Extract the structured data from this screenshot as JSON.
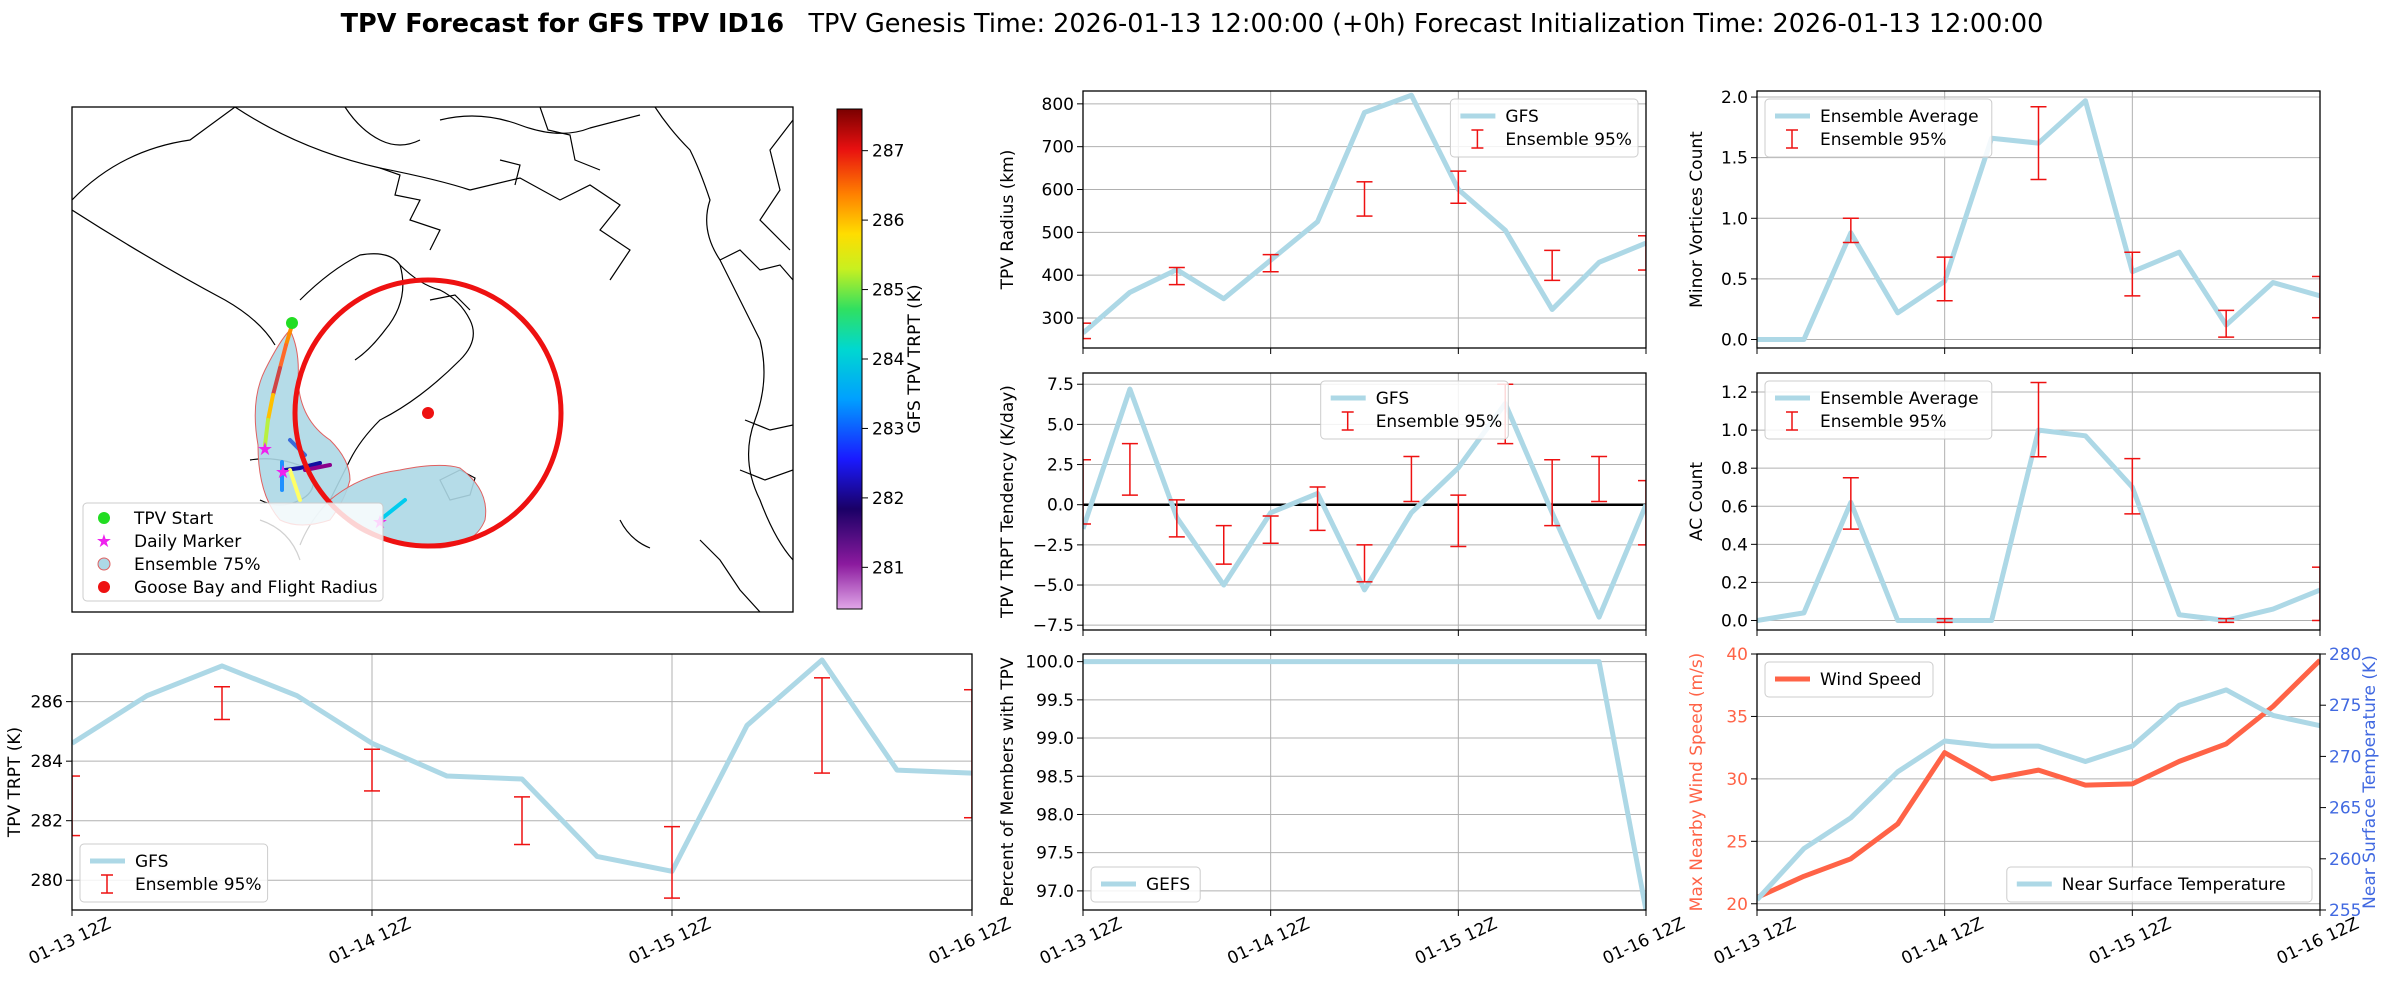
{
  "figure": {
    "title_bold": "TPV Forecast for GFS TPV ID16",
    "title_rest": "TPV Genesis Time: 2026-01-13 12:00:00 (+0h)   Forecast Initialization Time: 2026-01-13 12:00:00"
  },
  "map": {
    "legend": [
      "TPV Start",
      "Daily Marker",
      "Ensemble 75%",
      "Goose Bay and Flight Radius"
    ],
    "colorbar_label": "GFS TPV TRPT (K)",
    "colorbar_ticks": [
      "281",
      "282",
      "283",
      "284",
      "285",
      "286",
      "287"
    ],
    "colors": {
      "start": "#22dd22",
      "daily": "#ee22ee",
      "ensemble_fill": "#add8e6",
      "ensemble_edge": "#e06060",
      "goose": "#ee1111"
    }
  },
  "x_labels": [
    "01-13 12Z",
    "01-14 12Z",
    "01-15 12Z",
    "01-16 12Z"
  ],
  "chart_data": [
    {
      "id": "radius",
      "type": "line",
      "ylabel": "TPV Radius (km)",
      "ylim": [
        230,
        830
      ],
      "yticks": [
        300,
        400,
        500,
        600,
        700,
        800
      ],
      "ytick_labels": [
        "300",
        "400",
        "500",
        "600",
        "700",
        "800"
      ],
      "legend": [
        "GFS",
        "Ensemble 95%"
      ],
      "legend_pos": "top-right",
      "x": [
        0,
        0.25,
        0.5,
        0.75,
        1,
        1.25,
        1.5,
        1.75,
        2,
        2.25,
        2.5,
        2.75,
        3
      ],
      "series": [
        {
          "name": "GFS",
          "values": [
            265,
            360,
            413,
            345,
            435,
            525,
            780,
            820,
            600,
            505,
            320,
            430,
            475
          ]
        }
      ],
      "errorbars": [
        {
          "x": 0,
          "lo": 252,
          "hi": 288
        },
        {
          "x": 0.5,
          "lo": 378,
          "hi": 418
        },
        {
          "x": 1,
          "lo": 408,
          "hi": 448
        },
        {
          "x": 1.5,
          "lo": 538,
          "hi": 618
        },
        {
          "x": 2,
          "lo": 568,
          "hi": 643
        },
        {
          "x": 2.5,
          "lo": 388,
          "hi": 458
        },
        {
          "x": 3,
          "lo": 412,
          "hi": 492
        }
      ]
    },
    {
      "id": "minor",
      "type": "line",
      "ylabel": "Minor Vortices Count",
      "ylim": [
        -0.07,
        2.05
      ],
      "yticks": [
        0,
        0.5,
        1,
        1.5,
        2
      ],
      "ytick_labels": [
        "0.0",
        "0.5",
        "1.0",
        "1.5",
        "2.0"
      ],
      "legend": [
        "Ensemble Average",
        "Ensemble 95%"
      ],
      "legend_pos": "top-left",
      "x": [
        0,
        0.25,
        0.5,
        0.75,
        1,
        1.25,
        1.5,
        1.75,
        2,
        2.25,
        2.5,
        2.75,
        3
      ],
      "series": [
        {
          "name": "Ensemble Average",
          "values": [
            0,
            0,
            0.88,
            0.22,
            0.48,
            1.66,
            1.62,
            1.97,
            0.56,
            0.72,
            0.12,
            0.47,
            0.36
          ]
        }
      ],
      "errorbars": [
        {
          "x": 0.5,
          "lo": 0.8,
          "hi": 1.0
        },
        {
          "x": 1,
          "lo": 0.32,
          "hi": 0.68
        },
        {
          "x": 1.5,
          "lo": 1.32,
          "hi": 1.92
        },
        {
          "x": 2,
          "lo": 0.36,
          "hi": 0.72
        },
        {
          "x": 2.5,
          "lo": 0.02,
          "hi": 0.24
        },
        {
          "x": 3,
          "lo": 0.18,
          "hi": 0.52
        }
      ]
    },
    {
      "id": "tendency",
      "type": "line",
      "ylabel": "TPV TRPT Tendency (K/day)",
      "ylim": [
        -7.8,
        8.2
      ],
      "yticks": [
        -7.5,
        -5,
        -2.5,
        0,
        2.5,
        5,
        7.5
      ],
      "ytick_labels": [
        "−7.5",
        "−5.0",
        "−2.5",
        "0.0",
        "2.5",
        "5.0",
        "7.5"
      ],
      "legend": [
        "GFS",
        "Ensemble 95%"
      ],
      "legend_pos": "top-center",
      "hline": 0,
      "x": [
        0,
        0.25,
        0.5,
        0.75,
        1,
        1.25,
        1.5,
        1.75,
        2,
        2.25,
        2.5,
        2.75,
        3
      ],
      "series": [
        {
          "name": "GFS",
          "values": [
            -1.5,
            7.2,
            -0.8,
            -5,
            -0.5,
            0.7,
            -5.3,
            -0.5,
            2.3,
            6.3,
            -0.5,
            -7,
            0
          ]
        }
      ],
      "errorbars": [
        {
          "x": 0,
          "lo": -1.2,
          "hi": 2.8
        },
        {
          "x": 0.25,
          "lo": 0.6,
          "hi": 3.8
        },
        {
          "x": 0.5,
          "lo": -2,
          "hi": 0.3
        },
        {
          "x": 0.75,
          "lo": -3.7,
          "hi": -1.3
        },
        {
          "x": 1,
          "lo": -2.4,
          "hi": -0.7
        },
        {
          "x": 1.25,
          "lo": -1.6,
          "hi": 1.1
        },
        {
          "x": 1.5,
          "lo": -4.8,
          "hi": -2.5
        },
        {
          "x": 1.75,
          "lo": 0.2,
          "hi": 3
        },
        {
          "x": 2,
          "lo": -2.6,
          "hi": 0.6
        },
        {
          "x": 2.25,
          "lo": 3.8,
          "hi": 7.5
        },
        {
          "x": 2.5,
          "lo": -1.3,
          "hi": 2.8
        },
        {
          "x": 2.75,
          "lo": 0.2,
          "hi": 3
        },
        {
          "x": 3,
          "lo": -2.5,
          "hi": 1.5
        }
      ]
    },
    {
      "id": "ac",
      "type": "line",
      "ylabel": "AC Count",
      "ylim": [
        -0.05,
        1.3
      ],
      "yticks": [
        0,
        0.2,
        0.4,
        0.6,
        0.8,
        1.0,
        1.2
      ],
      "ytick_labels": [
        "0.0",
        "0.2",
        "0.4",
        "0.6",
        "0.8",
        "1.0",
        "1.2"
      ],
      "legend": [
        "Ensemble Average",
        "Ensemble 95%"
      ],
      "legend_pos": "top-left",
      "x": [
        0,
        0.25,
        0.5,
        0.75,
        1,
        1.25,
        1.5,
        1.75,
        2,
        2.25,
        2.5,
        2.75,
        3
      ],
      "series": [
        {
          "name": "Ensemble Average",
          "values": [
            0,
            0.04,
            0.62,
            0,
            0,
            0,
            1,
            0.97,
            0.7,
            0.03,
            0,
            0.06,
            0.16
          ]
        }
      ],
      "errorbars": [
        {
          "x": 0.5,
          "lo": 0.48,
          "hi": 0.75
        },
        {
          "x": 1,
          "lo": -0.01,
          "hi": 0.01
        },
        {
          "x": 1.5,
          "lo": 0.86,
          "hi": 1.25
        },
        {
          "x": 2,
          "lo": 0.56,
          "hi": 0.85
        },
        {
          "x": 2.5,
          "lo": -0.01,
          "hi": 0.01
        },
        {
          "x": 3,
          "lo": 0,
          "hi": 0.28
        }
      ]
    },
    {
      "id": "trpt",
      "type": "line",
      "ylabel": "TPV TRPT (K)",
      "ylim": [
        279,
        287.6
      ],
      "yticks": [
        280,
        282,
        284,
        286
      ],
      "ytick_labels": [
        "280",
        "282",
        "284",
        "286"
      ],
      "legend": [
        "GFS",
        "Ensemble 95%"
      ],
      "legend_pos": "bottom-left",
      "x": [
        0,
        0.25,
        0.5,
        0.75,
        1,
        1.25,
        1.5,
        1.75,
        2,
        2.25,
        2.5,
        2.75,
        3
      ],
      "series": [
        {
          "name": "GFS",
          "values": [
            284.6,
            286.2,
            287.2,
            286.2,
            284.6,
            283.5,
            283.4,
            280.8,
            280.3,
            285.2,
            287.4,
            283.7,
            283.6
          ]
        }
      ],
      "errorbars": [
        {
          "x": 0,
          "lo": 281.5,
          "hi": 283.5
        },
        {
          "x": 0.5,
          "lo": 285.4,
          "hi": 286.5
        },
        {
          "x": 1,
          "lo": 283,
          "hi": 284.4
        },
        {
          "x": 1.5,
          "lo": 281.2,
          "hi": 282.8
        },
        {
          "x": 2,
          "lo": 279.4,
          "hi": 281.8
        },
        {
          "x": 2.5,
          "lo": 283.6,
          "hi": 286.8
        },
        {
          "x": 3,
          "lo": 282.1,
          "hi": 286.4
        }
      ]
    },
    {
      "id": "members",
      "type": "line",
      "ylabel": "Percent of Members with TPV",
      "ylim": [
        96.75,
        100.1
      ],
      "yticks": [
        97,
        97.5,
        98,
        98.5,
        99,
        99.5,
        100
      ],
      "ytick_labels": [
        "97.0",
        "97.5",
        "98.0",
        "98.5",
        "99.0",
        "99.5",
        "100.0"
      ],
      "legend": [
        "GEFS"
      ],
      "legend_pos": "bottom-left",
      "x": [
        0,
        0.25,
        0.5,
        0.75,
        1,
        1.25,
        1.5,
        1.75,
        2,
        2.25,
        2.5,
        2.75,
        3
      ],
      "series": [
        {
          "name": "GEFS",
          "values": [
            100,
            100,
            100,
            100,
            100,
            100,
            100,
            100,
            100,
            100,
            100,
            100,
            96.75
          ]
        }
      ]
    },
    {
      "id": "wind",
      "type": "line",
      "ylabel": "Max Nearby Wind Speed (m/s)",
      "ylabel2": "Near Surface Temperature (K)",
      "ylim": [
        19.5,
        40
      ],
      "ylim2": [
        255,
        280
      ],
      "yticks": [
        20,
        25,
        30,
        35,
        40
      ],
      "ytick_labels": [
        "20",
        "25",
        "30",
        "35",
        "40"
      ],
      "yticks2": [
        255,
        260,
        265,
        270,
        275,
        280
      ],
      "ytick_labels2": [
        "255",
        "260",
        "265",
        "270",
        "275",
        "280"
      ],
      "legend": [
        "Wind Speed"
      ],
      "legend2": [
        "Near Surface Temperature"
      ],
      "x": [
        0,
        0.25,
        0.5,
        0.75,
        1,
        1.25,
        1.5,
        1.75,
        2,
        2.25,
        2.5,
        2.75,
        3
      ],
      "series": [
        {
          "name": "Wind Speed",
          "axis": "left",
          "values": [
            20.5,
            22.2,
            23.6,
            26.4,
            32.1,
            30,
            30.7,
            29.5,
            29.6,
            31.4,
            32.8,
            35.8,
            39.5
          ]
        },
        {
          "name": "Near Surface Temperature",
          "axis": "right",
          "values": [
            256,
            261,
            264,
            268.5,
            271.5,
            271,
            271,
            269.5,
            271,
            275,
            276.5,
            274,
            273
          ]
        }
      ],
      "colors": {
        "left": "#ff6347",
        "right": "#4169e1"
      }
    }
  ]
}
